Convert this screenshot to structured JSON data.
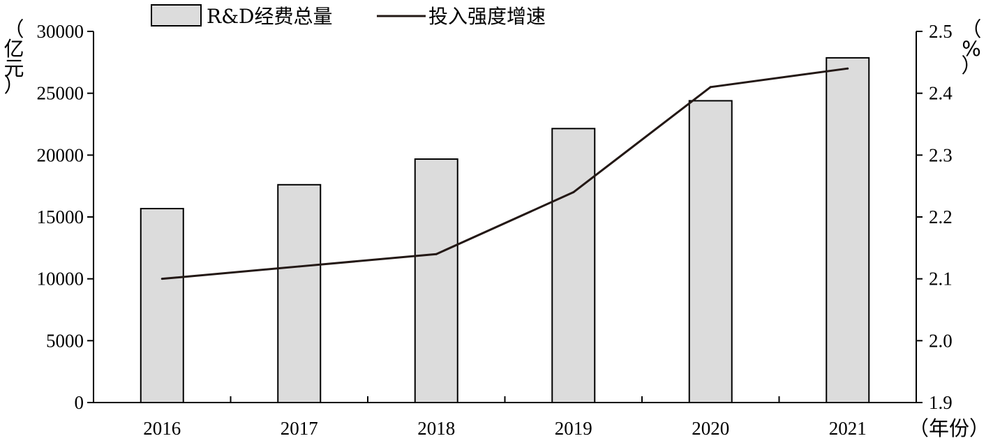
{
  "chart_data": {
    "type": "bar",
    "categories": [
      "2016",
      "2017",
      "2018",
      "2019",
      "2020",
      "2021"
    ],
    "series": [
      {
        "name": "R&D经费总量",
        "type": "bar",
        "axis": "left",
        "values": [
          15677,
          17606,
          19678,
          22144,
          24393,
          27864
        ],
        "color": "#dcdcdc"
      },
      {
        "name": "投入强度增速",
        "type": "line",
        "axis": "right",
        "values": [
          2.1,
          2.12,
          2.14,
          2.24,
          2.41,
          2.44
        ],
        "color": "#231815"
      }
    ],
    "y_left": {
      "unit_label": "（亿元）",
      "ylim": [
        0,
        30000
      ],
      "ticks": [
        "0",
        "5000",
        "10000",
        "15000",
        "20000",
        "25000",
        "30000"
      ]
    },
    "y_right": {
      "unit_label": "（%）",
      "ylim": [
        1.9,
        2.5
      ],
      "ticks": [
        "1.9",
        "2.0",
        "2.1",
        "2.2",
        "2.3",
        "2.4",
        "2.5"
      ]
    },
    "x_axis": {
      "unit_label": "（年份）"
    },
    "legend": {
      "position": "top-center",
      "bar_label": "R&D经费总量",
      "line_label": "投入强度增速"
    },
    "grid": false
  }
}
